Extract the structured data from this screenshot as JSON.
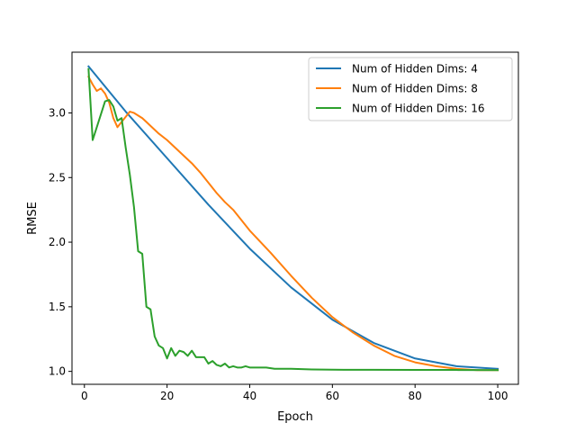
{
  "chart_data": {
    "type": "line",
    "title": "",
    "xlabel": "Epoch",
    "ylabel": "RMSE",
    "xlim": [
      -3,
      105
    ],
    "ylim": [
      0.9,
      3.47
    ],
    "xticks": [
      0,
      20,
      40,
      60,
      80,
      100
    ],
    "yticks": [
      1.0,
      1.5,
      2.0,
      2.5,
      3.0
    ],
    "ytick_labels": [
      "1.0",
      "1.5",
      "2.0",
      "2.5",
      "3.0"
    ],
    "grid": false,
    "legend_position": "top-right",
    "series": [
      {
        "name": "Num of Hidden Dims: 4",
        "color": "#1f77b4",
        "x": [
          1,
          10,
          20,
          30,
          40,
          50,
          60,
          70,
          80,
          90,
          100
        ],
        "y": [
          3.36,
          3.01,
          2.65,
          2.29,
          1.95,
          1.65,
          1.4,
          1.22,
          1.1,
          1.04,
          1.02
        ]
      },
      {
        "name": "Num of Hidden Dims: 8",
        "color": "#ff7f0e",
        "x": [
          1,
          2,
          3,
          4,
          5,
          6,
          7,
          8,
          9,
          10,
          11,
          12,
          13,
          14,
          15,
          16,
          18,
          20,
          22,
          24,
          26,
          28,
          30,
          32,
          34,
          36,
          38,
          40,
          45,
          50,
          55,
          60,
          65,
          70,
          75,
          80,
          85,
          90,
          95,
          100
        ],
        "y": [
          3.28,
          3.22,
          3.17,
          3.19,
          3.15,
          3.08,
          2.96,
          2.89,
          2.93,
          2.97,
          3.01,
          3.0,
          2.98,
          2.96,
          2.93,
          2.9,
          2.84,
          2.79,
          2.73,
          2.67,
          2.61,
          2.54,
          2.46,
          2.38,
          2.31,
          2.25,
          2.17,
          2.09,
          1.92,
          1.74,
          1.57,
          1.42,
          1.3,
          1.2,
          1.12,
          1.07,
          1.04,
          1.02,
          1.01,
          1.01
        ]
      },
      {
        "name": "Num of Hidden Dims: 16",
        "color": "#2ca02c",
        "x": [
          1,
          2,
          3,
          4,
          5,
          6,
          7,
          8,
          9,
          10,
          11,
          12,
          13,
          14,
          15,
          16,
          17,
          18,
          19,
          20,
          21,
          22,
          23,
          24,
          25,
          26,
          27,
          28,
          29,
          30,
          31,
          32,
          33,
          34,
          35,
          36,
          37,
          38,
          39,
          40,
          42,
          44,
          46,
          48,
          50,
          55,
          60,
          70,
          80,
          90,
          100
        ],
        "y": [
          3.34,
          2.79,
          2.89,
          2.99,
          3.09,
          3.1,
          3.05,
          2.94,
          2.96,
          2.73,
          2.52,
          2.27,
          1.93,
          1.91,
          1.5,
          1.48,
          1.27,
          1.2,
          1.18,
          1.1,
          1.18,
          1.12,
          1.16,
          1.15,
          1.12,
          1.16,
          1.11,
          1.11,
          1.11,
          1.06,
          1.08,
          1.05,
          1.04,
          1.06,
          1.03,
          1.04,
          1.03,
          1.03,
          1.04,
          1.03,
          1.03,
          1.03,
          1.02,
          1.02,
          1.02,
          1.015,
          1.013,
          1.012,
          1.011,
          1.011,
          1.01
        ]
      }
    ]
  }
}
